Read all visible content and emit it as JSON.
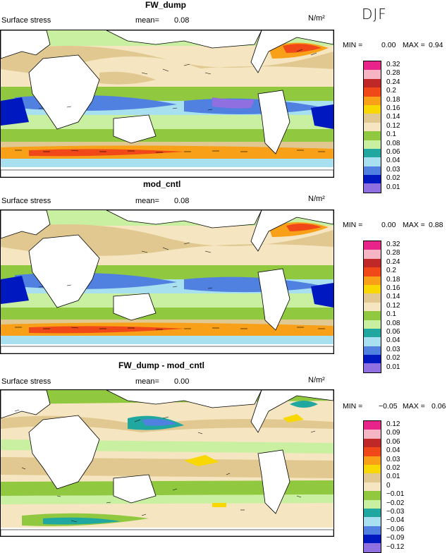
{
  "season": "DJF",
  "panels": [
    {
      "title": "FW_dump",
      "field": "Surface stress",
      "mean_label": "mean=",
      "mean_value": "0.08",
      "unit": "N/m²",
      "min_label": "MIN =",
      "min_value": "0.00",
      "max_label": "MAX =",
      "max_value": "0.94",
      "legend_labels": [
        "0.32",
        "0.28",
        "0.24",
        "0.2",
        "0.18",
        "0.16",
        "0.14",
        "0.12",
        "0.1",
        "0.08",
        "0.06",
        "0.04",
        "0.03",
        "0.02",
        "0.01"
      ],
      "legend_colors": [
        "#e8238a",
        "#f5b5c5",
        "#c02828",
        "#f04818",
        "#f8a018",
        "#f8d800",
        "#e0c890",
        "#f5e5c0",
        "#90c840",
        "#c8f0a0",
        "#20a8a0",
        "#a8e0f0",
        "#5080e0",
        "#0018c0",
        "#9070e0"
      ]
    },
    {
      "title": "mod_cntl",
      "field": "Surface stress",
      "mean_label": "mean=",
      "mean_value": "0.08",
      "unit": "N/m²",
      "min_label": "MIN =",
      "min_value": "0.00",
      "max_label": "MAX =",
      "max_value": "0.88",
      "legend_labels": [
        "0.32",
        "0.28",
        "0.24",
        "0.2",
        "0.18",
        "0.16",
        "0.14",
        "0.12",
        "0.1",
        "0.08",
        "0.06",
        "0.04",
        "0.03",
        "0.02",
        "0.01"
      ],
      "legend_colors": [
        "#e8238a",
        "#f5b5c5",
        "#c02828",
        "#f04818",
        "#f8a018",
        "#f8d800",
        "#e0c890",
        "#f5e5c0",
        "#90c840",
        "#c8f0a0",
        "#20a8a0",
        "#a8e0f0",
        "#5080e0",
        "#0018c0",
        "#9070e0"
      ]
    },
    {
      "title": "FW_dump - mod_cntl",
      "field": "Surface stress",
      "mean_label": "mean=",
      "mean_value": "0.00",
      "unit": "N/m²",
      "min_label": "MIN =",
      "min_value": "−0.05",
      "max_label": "MAX =",
      "max_value": "0.06",
      "legend_labels": [
        "0.12",
        "0.09",
        "0.06",
        "0.04",
        "0.03",
        "0.02",
        "0.01",
        "0",
        "−0.01",
        "−0.02",
        "−0.03",
        "−0.04",
        "−0.06",
        "−0.09",
        "−0.12"
      ],
      "legend_colors": [
        "#e8238a",
        "#f5b5c5",
        "#c02828",
        "#f04818",
        "#f8a018",
        "#f8d800",
        "#e0c890",
        "#f5e5c0",
        "#90c840",
        "#c8f0a0",
        "#20a8a0",
        "#a8e0f0",
        "#5080e0",
        "#0018c0",
        "#9070e0"
      ]
    }
  ]
}
